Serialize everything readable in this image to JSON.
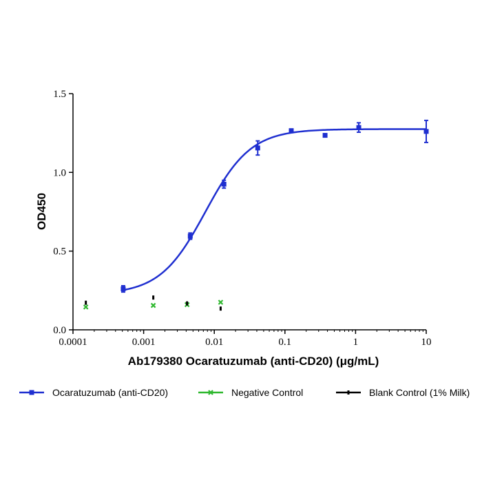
{
  "chart_data": {
    "type": "scatter",
    "xlabel": "Ab179380 Ocaratuzumab (anti-CD20) (μg/mL)",
    "ylabel": "OD450",
    "xscale": "log",
    "xlim": [
      0.0001,
      10
    ],
    "ylim": [
      0,
      1.5
    ],
    "x_ticks": [
      "0.0001",
      "0.001",
      "0.01",
      "0.1",
      "1",
      "10"
    ],
    "y_ticks": [
      "0.0",
      "0.5",
      "1.0",
      "1.5"
    ],
    "legend_position": "bottom",
    "series": [
      {
        "name": "Ocaratuzumab (anti-CD20)",
        "color": "#1f2fd0",
        "marker": "square",
        "fit": "4PL sigmoid",
        "points": [
          {
            "x": 0.000514,
            "y": 0.26,
            "err": 0.02
          },
          {
            "x": 0.00457,
            "y": 0.595,
            "err": 0.02
          },
          {
            "x": 0.0137,
            "y": 0.925,
            "err": 0.025
          },
          {
            "x": 0.0412,
            "y": 1.155,
            "err": 0.045
          },
          {
            "x": 0.123,
            "y": 1.265,
            "err": 0.01
          },
          {
            "x": 0.37,
            "y": 1.235,
            "err": 0.01
          },
          {
            "x": 1.11,
            "y": 1.285,
            "err": 0.03
          },
          {
            "x": 10,
            "y": 1.26,
            "err": 0.07
          }
        ]
      },
      {
        "name": "Negative Control",
        "color": "#2fb82f",
        "marker": "x",
        "points": [
          {
            "x": 0.000152,
            "y": 0.145
          },
          {
            "x": 0.00137,
            "y": 0.155
          },
          {
            "x": 0.00412,
            "y": 0.16
          },
          {
            "x": 0.0123,
            "y": 0.175
          }
        ]
      },
      {
        "name": "Blank Control (1% Milk)",
        "color": "#000000",
        "marker": "dash",
        "points": [
          {
            "x": 0.000152,
            "y": 0.172
          },
          {
            "x": 0.00137,
            "y": 0.205
          },
          {
            "x": 0.00412,
            "y": 0.168
          },
          {
            "x": 0.0123,
            "y": 0.135
          }
        ]
      }
    ]
  }
}
